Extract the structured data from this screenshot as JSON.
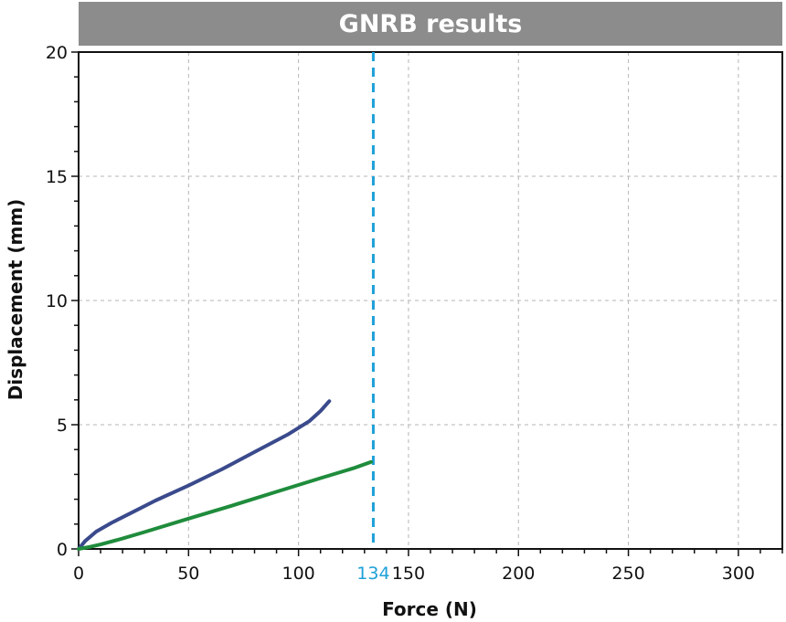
{
  "chart_data": {
    "type": "line",
    "title": "GNRB results",
    "xlabel": "Force (N)",
    "ylabel": "Displacement (mm)",
    "xlim": [
      0,
      320
    ],
    "ylim": [
      0,
      20
    ],
    "x_ticks": [
      0,
      50,
      100,
      150,
      200,
      250,
      300
    ],
    "y_ticks": [
      0,
      5,
      10,
      15,
      20
    ],
    "x_tick_labels": [
      "0",
      "50",
      "100",
      "150",
      "200",
      "250",
      "300"
    ],
    "y_tick_labels": [
      "0",
      "5",
      "10",
      "15",
      "20"
    ],
    "grid": true,
    "series": [
      {
        "color": "#3a4a8c",
        "x": [
          0,
          3,
          8,
          15,
          25,
          35,
          50,
          65,
          80,
          95,
          105,
          110,
          114
        ],
        "y": [
          0,
          0.32,
          0.7,
          1.05,
          1.5,
          1.95,
          2.55,
          3.2,
          3.9,
          4.6,
          5.15,
          5.55,
          5.95
        ]
      },
      {
        "color": "#1f8c3c",
        "x": [
          0,
          5,
          10,
          20,
          30,
          50,
          70,
          90,
          110,
          125,
          133
        ],
        "y": [
          0,
          0.08,
          0.18,
          0.42,
          0.68,
          1.22,
          1.75,
          2.3,
          2.85,
          3.25,
          3.5
        ]
      }
    ],
    "reference_line": {
      "orientation": "vertical",
      "x": 134,
      "label": "134",
      "color": "#1ea0d8",
      "style": "dashed"
    }
  }
}
